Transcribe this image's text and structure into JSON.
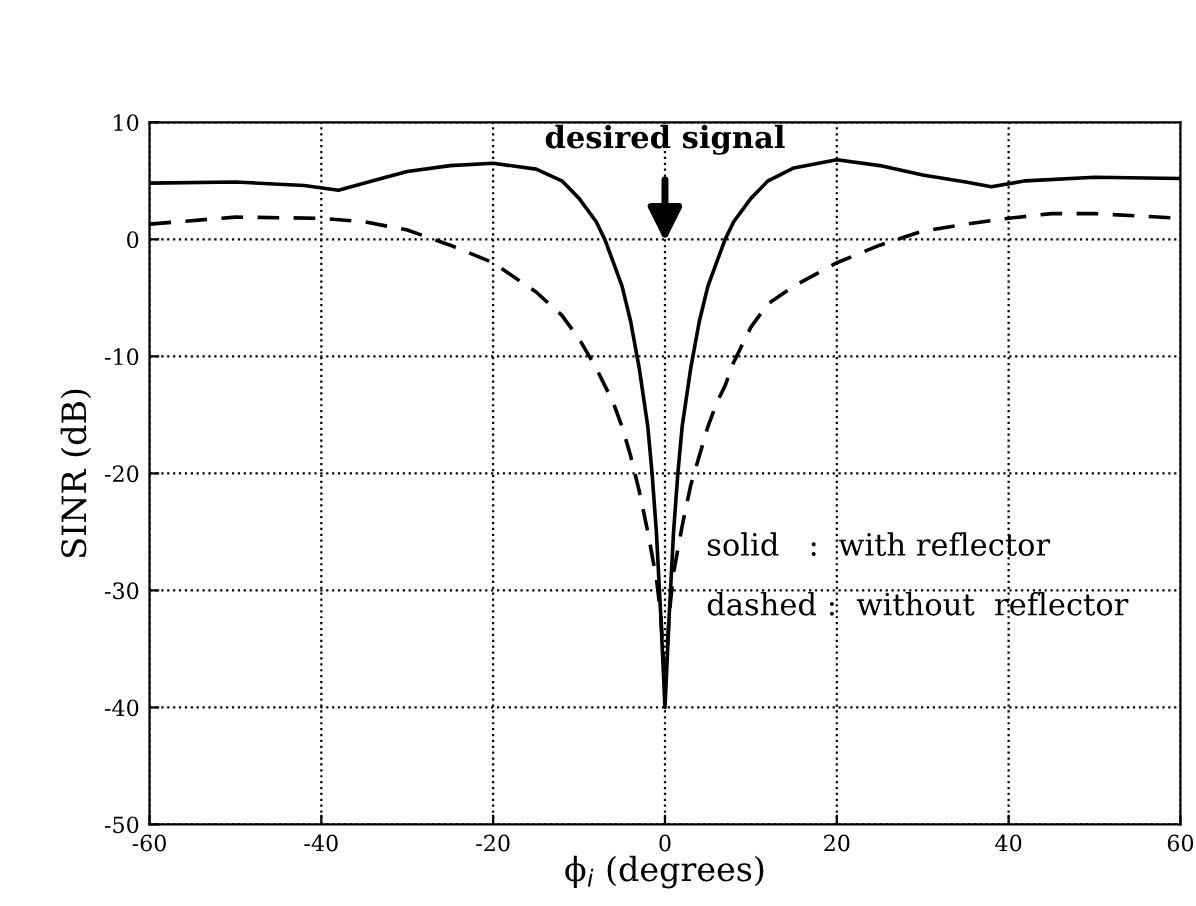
{
  "chart_data": {
    "type": "line",
    "xlabel": "ϕ$_{i}$ (degrees)",
    "ylabel": "SINR (dB)",
    "xlim": [
      -60,
      60
    ],
    "ylim": [
      -50,
      10
    ],
    "xticks": [
      -60,
      -40,
      -20,
      0,
      20,
      40,
      60
    ],
    "yticks": [
      -50,
      -40,
      -30,
      -20,
      -10,
      0,
      10
    ],
    "grid": true,
    "legend": false,
    "series": [
      {
        "color": "#000000",
        "line_style": "solid",
        "x": [
          -60,
          -50,
          -42,
          -38,
          -34,
          -30,
          -25,
          -20,
          -15,
          -12,
          -10,
          -8,
          -7,
          -6,
          -5,
          -4,
          -3,
          -2,
          -1.5,
          -1,
          -0.5,
          0,
          0.5,
          1,
          1.5,
          2,
          3,
          4,
          5,
          6,
          7,
          8,
          10,
          12,
          15,
          20,
          25,
          30,
          35,
          38,
          42,
          50,
          60
        ],
        "values": [
          4.8,
          4.9,
          4.6,
          4.2,
          5.0,
          5.8,
          6.3,
          6.5,
          6.0,
          5.0,
          3.5,
          1.5,
          0,
          -2,
          -4,
          -7,
          -11,
          -16,
          -20,
          -25,
          -32,
          -40,
          -32,
          -25,
          -20,
          -16,
          -11,
          -7,
          -4,
          -2,
          0,
          1.5,
          3.5,
          5.0,
          6.1,
          6.8,
          6.3,
          5.5,
          4.9,
          4.5,
          5.0,
          5.3,
          5.2
        ]
      },
      {
        "color": "#000000",
        "line_style": "dashed",
        "x": [
          -60,
          -50,
          -40,
          -35,
          -30,
          -25,
          -20,
          -15,
          -12,
          -10,
          -8,
          -7,
          -6,
          -5,
          -4,
          -3,
          -2,
          -1,
          -0.5,
          0,
          0.5,
          1,
          2,
          3,
          4,
          5,
          6,
          7,
          8,
          10,
          12,
          15,
          20,
          25,
          30,
          35,
          40,
          45,
          50,
          60
        ],
        "values": [
          1.3,
          1.9,
          1.8,
          1.5,
          0.8,
          -0.5,
          -2.0,
          -4.5,
          -6.5,
          -8.5,
          -11,
          -12.5,
          -14,
          -16,
          -18.5,
          -21.5,
          -25,
          -29,
          -32,
          -38,
          -32,
          -28.5,
          -24.5,
          -21,
          -18.5,
          -16,
          -14,
          -12.5,
          -10.5,
          -7.5,
          -5.5,
          -4.0,
          -2.0,
          -0.5,
          0.7,
          1.3,
          1.8,
          2.2,
          2.2,
          1.8
        ]
      }
    ],
    "annotations": [
      "desired signal",
      "solid   :  with reflector",
      "dashed :  without  reflector"
    ]
  }
}
